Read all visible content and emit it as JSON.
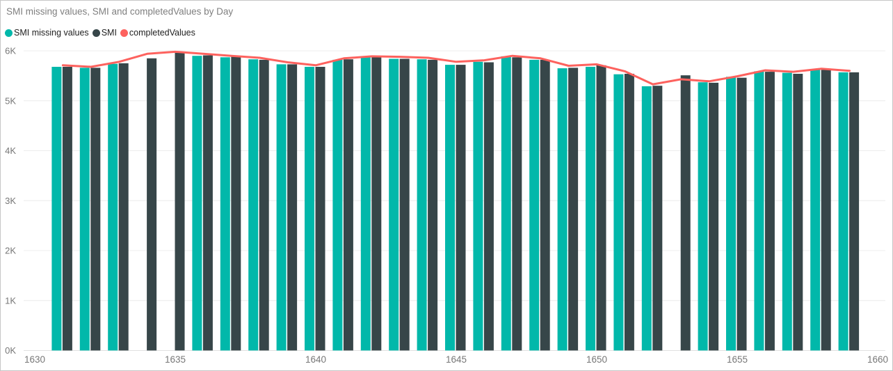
{
  "title": "SMI missing values, SMI and completedValues by Day",
  "legend": [
    {
      "label": "SMI missing values",
      "color": "#01B8AA"
    },
    {
      "label": "SMI",
      "color": "#374649"
    },
    {
      "label": "completedValues",
      "color": "#FD625E"
    }
  ],
  "colors": {
    "bar_teal": "#01B8AA",
    "bar_dark": "#374649",
    "line_red": "#FD625E",
    "axis_text": "#777777",
    "title_text": "#7f7f7f",
    "legend_text": "#212121",
    "gridline": "#ececec",
    "baseline": "#e0e0e0",
    "card_border": "#c6c6c6"
  },
  "chart_data": {
    "type": "bar",
    "subtype": "grouped-bars-with-line",
    "title": "SMI missing values, SMI and completedValues by Day",
    "xlabel": "Day",
    "ylabel": "",
    "xlim": [
      1630,
      1660
    ],
    "ylim": [
      0,
      6000
    ],
    "x_ticks": [
      "1630",
      "1635",
      "1640",
      "1645",
      "1650",
      "1655",
      "1660"
    ],
    "y_ticks": [
      "0K",
      "1K",
      "2K",
      "3K",
      "4K",
      "5K",
      "6K"
    ],
    "grid": true,
    "legend_position": "top-left",
    "x": [
      1631,
      1632,
      1633,
      1634,
      1635,
      1636,
      1637,
      1638,
      1639,
      1640,
      1641,
      1642,
      1643,
      1644,
      1645,
      1646,
      1647,
      1648,
      1649,
      1650,
      1651,
      1652,
      1653,
      1654,
      1655,
      1656,
      1657,
      1658,
      1659
    ],
    "series": [
      {
        "name": "SMI missing values",
        "kind": "bar",
        "color": "#01B8AA",
        "values": [
          5680,
          5660,
          5740,
          null,
          null,
          5900,
          5870,
          5830,
          5730,
          5680,
          5820,
          5880,
          5840,
          5830,
          5720,
          5780,
          5890,
          5820,
          5650,
          5680,
          5530,
          5290,
          null,
          5370,
          5480,
          5590,
          5560,
          5630,
          5570
        ]
      },
      {
        "name": "SMI",
        "kind": "bar",
        "color": "#374649",
        "values": [
          5680,
          5660,
          5750,
          5850,
          5960,
          5910,
          5880,
          5820,
          5730,
          5680,
          5830,
          5870,
          5840,
          5820,
          5720,
          5770,
          5870,
          5820,
          5660,
          5710,
          5540,
          5300,
          5510,
          5360,
          5460,
          5580,
          5540,
          5620,
          5570
        ]
      },
      {
        "name": "completedValues",
        "kind": "line",
        "color": "#FD625E",
        "values": [
          5710,
          5680,
          5780,
          5940,
          5980,
          5940,
          5900,
          5860,
          5770,
          5710,
          5850,
          5890,
          5880,
          5860,
          5780,
          5810,
          5900,
          5850,
          5700,
          5730,
          5590,
          5330,
          5430,
          5390,
          5490,
          5610,
          5580,
          5640,
          5600
        ]
      }
    ]
  }
}
